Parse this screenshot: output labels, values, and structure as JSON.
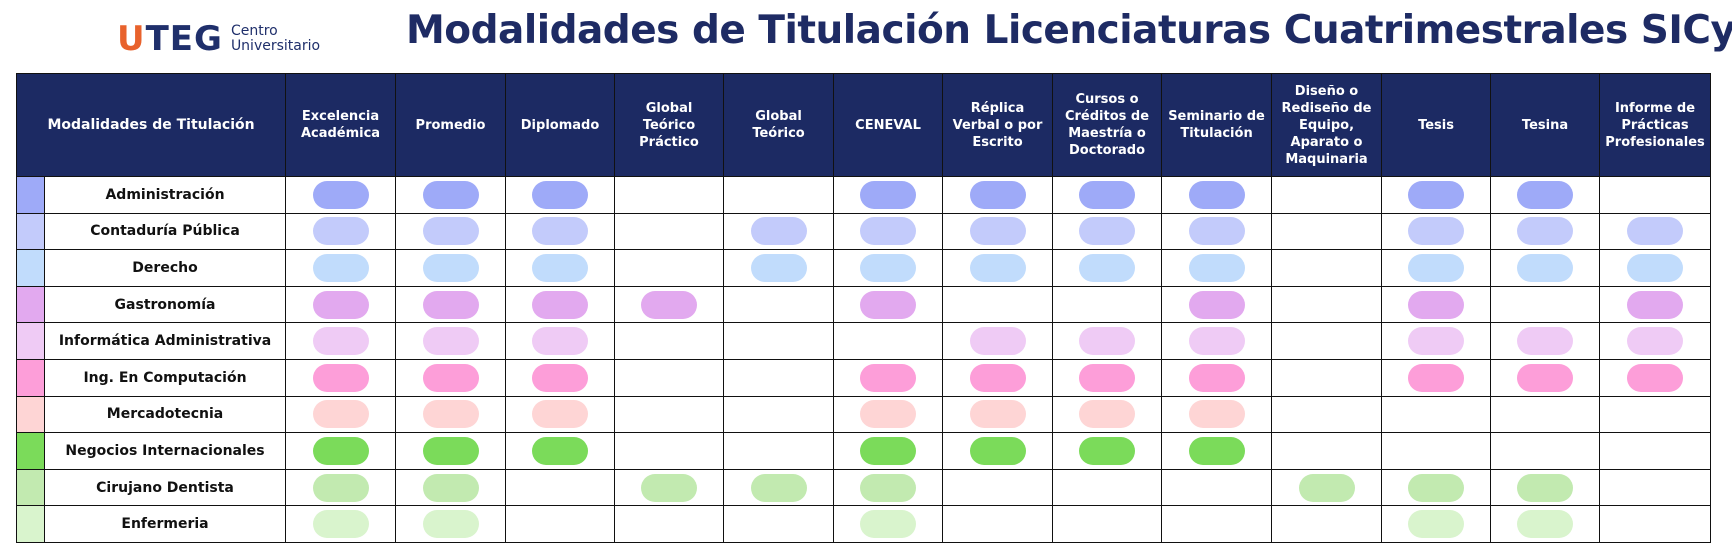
{
  "logo": {
    "brand_first_letter": "U",
    "brand_rest": "TEG",
    "line1": "Centro",
    "line2": "Universitario"
  },
  "title": "Modalidades de Titulación Licenciaturas Cuatrimestrales SICyT",
  "table": {
    "first_header": "Modalidades de Titulación",
    "columns": [
      "Excelencia Académica",
      "Promedio",
      "Diplomado",
      "Global Teórico Práctico",
      "Global Teórico",
      "CENEVAL",
      "Réplica Verbal o por Escrito",
      "Cursos o Créditos de Maestría o Doctorado",
      "Seminario de Titulación",
      "Diseño o Rediseño de Equipo, Aparato o Maquinaria",
      "Tesis",
      "Tesina",
      "Informe de Prácticas Profesionales"
    ],
    "rows": [
      {
        "name": "Administración",
        "color": "#9eaaf8",
        "marks": [
          1,
          1,
          1,
          0,
          0,
          1,
          1,
          1,
          1,
          0,
          1,
          1,
          0
        ]
      },
      {
        "name": "Contaduría Pública",
        "color": "#c3cbfb",
        "marks": [
          1,
          1,
          1,
          0,
          1,
          1,
          1,
          1,
          1,
          0,
          1,
          1,
          1
        ]
      },
      {
        "name": "Derecho",
        "color": "#c1dcfc",
        "marks": [
          1,
          1,
          1,
          0,
          1,
          1,
          1,
          1,
          1,
          0,
          1,
          1,
          1
        ]
      },
      {
        "name": "Gastronomía",
        "color": "#e2a9ef",
        "marks": [
          1,
          1,
          1,
          1,
          0,
          1,
          0,
          0,
          1,
          0,
          1,
          0,
          1
        ]
      },
      {
        "name": "Informática Administrativa",
        "color": "#efcbf5",
        "marks": [
          1,
          1,
          1,
          0,
          0,
          0,
          1,
          1,
          1,
          0,
          1,
          1,
          1
        ]
      },
      {
        "name": "Ing. En Computación",
        "color": "#fd9ed9",
        "marks": [
          1,
          1,
          1,
          0,
          0,
          1,
          1,
          1,
          1,
          0,
          1,
          1,
          1
        ]
      },
      {
        "name": "Mercadotecnia",
        "color": "#fed5d5",
        "marks": [
          1,
          1,
          1,
          0,
          0,
          1,
          1,
          1,
          1,
          0,
          0,
          0,
          0
        ]
      },
      {
        "name": "Negocios Internacionales",
        "color": "#7bdb5a",
        "marks": [
          1,
          1,
          1,
          0,
          0,
          1,
          1,
          1,
          1,
          0,
          0,
          0,
          0
        ]
      },
      {
        "name": "Cirujano Dentista",
        "color": "#c2eab0",
        "marks": [
          1,
          1,
          0,
          1,
          1,
          1,
          0,
          0,
          0,
          1,
          1,
          1,
          0
        ]
      },
      {
        "name": "Enfermeria",
        "color": "#d9f4cd",
        "marks": [
          1,
          1,
          0,
          0,
          0,
          1,
          0,
          0,
          0,
          0,
          1,
          1,
          0
        ]
      }
    ]
  }
}
